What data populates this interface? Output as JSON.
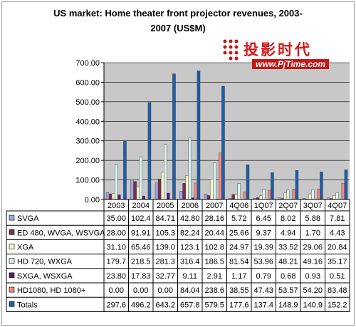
{
  "chart_data": {
    "type": "bar",
    "title_line1": "US market: Home theater front projector revenues, 2003-",
    "title_line2": "2007 (US$M)",
    "categories": [
      "2003",
      "2004",
      "2005",
      "2006",
      "2007",
      "4Q06",
      "1Q07",
      "2Q07",
      "3Q07",
      "4Q07"
    ],
    "ylim": [
      0,
      700
    ],
    "yticks": [
      "0.00",
      "100.00",
      "200.00",
      "300.00",
      "400.00",
      "500.00",
      "600.00",
      "700.00"
    ],
    "grid": true,
    "legend": "table-below",
    "series": [
      {
        "name": "SVGA",
        "color": "#9fa3e6",
        "values": [
          35.0,
          102.4,
          84.71,
          42.8,
          28.16,
          5.72,
          6.45,
          8.02,
          5.88,
          7.81
        ],
        "labels": [
          "35.00",
          "102.4",
          "84.71",
          "42.80",
          "28.16",
          "5.72",
          "6.45",
          "8.02",
          "5.88",
          "7.81"
        ]
      },
      {
        "name": "ED 480, WVGA, WSVGA",
        "color": "#7b2d4f",
        "values": [
          28.0,
          91.91,
          105.3,
          82.24,
          20.44,
          25.66,
          9.37,
          4.94,
          1.7,
          4.43
        ],
        "labels": [
          "28.00",
          "91.91",
          "105.3",
          "82.24",
          "20.44",
          "25.66",
          "9.37",
          "4.94",
          "1.70",
          "4.43"
        ]
      },
      {
        "name": "XGA",
        "color": "#f4f4c8",
        "values": [
          31.1,
          65.46,
          139.0,
          123.1,
          102.8,
          24.97,
          19.39,
          33.52,
          29.06,
          20.84
        ],
        "labels": [
          "31.10",
          "65.46",
          "139.0",
          "123.1",
          "102.8",
          "24.97",
          "19.39",
          "33.52",
          "29.06",
          "20.84"
        ]
      },
      {
        "name": "HD 720, WXGA",
        "color": "#d8f0f0",
        "values": [
          179.7,
          218.5,
          281.3,
          316.4,
          186.5,
          81.54,
          53.96,
          48.21,
          49.16,
          35.17
        ],
        "labels": [
          "179.7",
          "218.5",
          "281.3",
          "316.4",
          "186.5",
          "81.54",
          "53.96",
          "48.21",
          "49.16",
          "35.17"
        ]
      },
      {
        "name": "SXGA, WSXGA",
        "color": "#5a1f6a",
        "values": [
          23.8,
          17.83,
          32.77,
          9.11,
          2.91,
          1.17,
          0.79,
          0.68,
          0.93,
          0.51
        ],
        "labels": [
          "23.80",
          "17.83",
          "32.77",
          "9.11",
          "2.91",
          "1.17",
          "0.79",
          "0.68",
          "0.93",
          "0.51"
        ]
      },
      {
        "name": "HD1080, HD 1080+",
        "color": "#f08a84",
        "values": [
          0.0,
          0.0,
          0.0,
          84.04,
          238.6,
          38.55,
          47.43,
          53.57,
          54.2,
          83.48
        ],
        "labels": [
          "0.00",
          "0.00",
          "0.00",
          "84.04",
          "238.6",
          "38.55",
          "47.43",
          "53.57",
          "54.20",
          "83.48"
        ]
      },
      {
        "name": "Totals",
        "color": "#1f5ea8",
        "values": [
          297.6,
          496.2,
          643.2,
          657.8,
          579.5,
          177.6,
          137.4,
          148.9,
          140.9,
          152.2
        ],
        "labels": [
          "297.6",
          "496.2",
          "643.2",
          "657.8",
          "579.5",
          "177.6",
          "137.4",
          "148.9",
          "140.9",
          "152.2"
        ]
      }
    ]
  },
  "watermark": {
    "chinese": "投影时代",
    "url": "www.PjTime.com",
    "accent": "#c41717"
  }
}
